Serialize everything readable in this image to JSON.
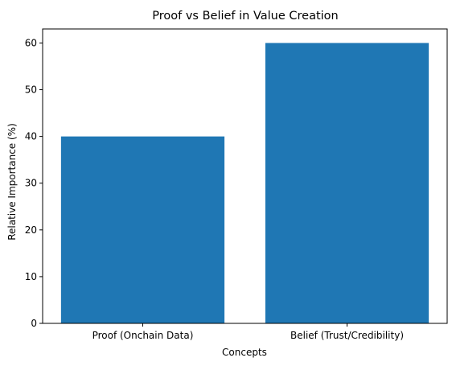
{
  "chart_data": {
    "type": "bar",
    "title": "Proof vs Belief in Value Creation",
    "xlabel": "Concepts",
    "ylabel": "Relative Importance (%)",
    "categories": [
      "Proof (Onchain Data)",
      "Belief (Trust/Credibility)"
    ],
    "values": [
      40,
      60
    ],
    "ylim": [
      0,
      63
    ],
    "yticks": [
      0,
      10,
      20,
      30,
      40,
      50,
      60
    ],
    "bar_color": "#1f77b4",
    "grid": false,
    "legend": "none"
  }
}
